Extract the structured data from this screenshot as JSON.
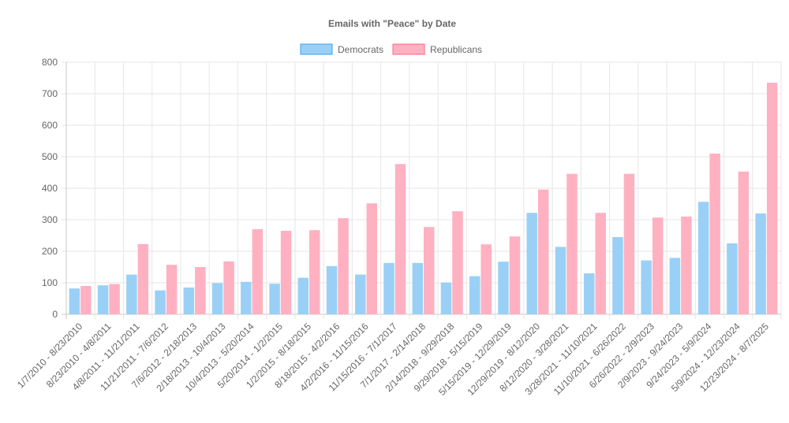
{
  "chart_data": {
    "type": "bar",
    "title": "Emails with \"Peace\" by Date",
    "xlabel": "",
    "ylabel": "",
    "ylim": [
      0,
      800
    ],
    "yticks": [
      0,
      100,
      200,
      300,
      400,
      500,
      600,
      700,
      800
    ],
    "grid": true,
    "legend_position": "top-center",
    "categories": [
      "1/7/2010 - 8/23/2010",
      "8/23/2010 - 4/8/2011",
      "4/8/2011 - 11/21/2011",
      "11/21/2011 - 7/6/2012",
      "7/6/2012 - 2/18/2013",
      "2/18/2013 - 10/4/2013",
      "10/4/2013 - 5/20/2014",
      "5/20/2014 - 1/2/2015",
      "1/2/2015 - 8/18/2015",
      "8/18/2015 - 4/2/2016",
      "4/2/2016 - 11/15/2016",
      "11/15/2016 - 7/1/2017",
      "7/1/2017 - 2/14/2018",
      "2/14/2018 - 9/29/2018",
      "9/29/2018 - 5/15/2019",
      "5/15/2019 - 12/29/2019",
      "12/29/2019 - 8/12/2020",
      "8/12/2020 - 3/28/2021",
      "3/28/2021 - 11/10/2021",
      "11/10/2021 - 6/26/2022",
      "6/26/2022 - 2/9/2023",
      "2/9/2023 - 9/24/2023",
      "9/24/2023 - 5/9/2024",
      "5/9/2024 - 12/23/2024",
      "12/23/2024 - 8/7/2025"
    ],
    "series": [
      {
        "name": "Democrats",
        "color": "#9ad0f5",
        "border": "#36a2eb",
        "values": [
          82,
          92,
          126,
          76,
          85,
          99,
          103,
          97,
          116,
          153,
          126,
          163,
          163,
          101,
          121,
          167,
          322,
          214,
          130,
          245,
          171,
          179,
          357,
          225,
          320
        ]
      },
      {
        "name": "Republicans",
        "color": "#ffb1c1",
        "border": "#ff6384",
        "values": [
          90,
          96,
          223,
          157,
          150,
          168,
          270,
          265,
          267,
          305,
          352,
          477,
          277,
          327,
          222,
          247,
          396,
          446,
          322,
          446,
          307,
          310,
          510,
          453,
          735
        ]
      }
    ]
  }
}
